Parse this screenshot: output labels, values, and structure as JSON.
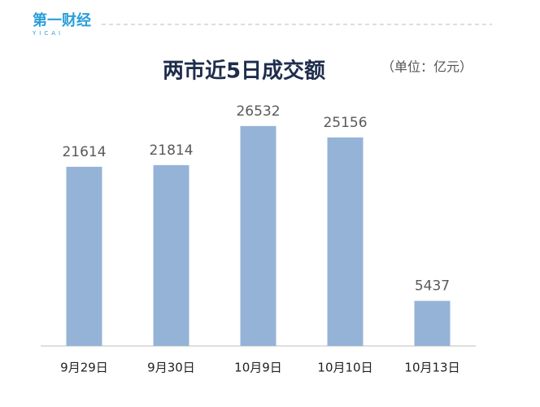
{
  "chart_data": {
    "type": "bar",
    "brand": "第一财经",
    "brand_sub": "YICAI",
    "title": "两市近5日成交额",
    "subtitle": "（单位：亿元）",
    "categories": [
      "9月29日",
      "9月30日",
      "10月9日",
      "10月10日",
      "10月13日"
    ],
    "values": [
      21614,
      21814,
      26532,
      25156,
      5437
    ],
    "color": "#95b3d7",
    "ylim": [
      0,
      30000
    ],
    "grid": false
  }
}
